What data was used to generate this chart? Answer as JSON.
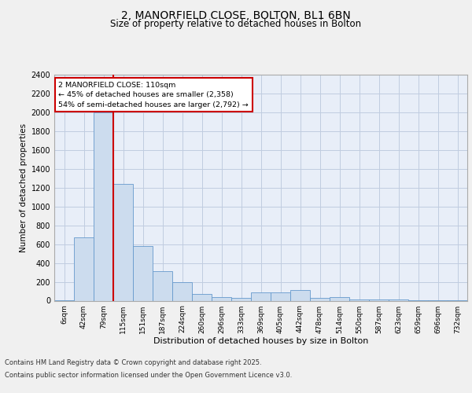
{
  "title_line1": "2, MANORFIELD CLOSE, BOLTON, BL1 6BN",
  "title_line2": "Size of property relative to detached houses in Bolton",
  "xlabel": "Distribution of detached houses by size in Bolton",
  "ylabel": "Number of detached properties",
  "categories": [
    "6sqm",
    "42sqm",
    "79sqm",
    "115sqm",
    "151sqm",
    "187sqm",
    "224sqm",
    "260sqm",
    "296sqm",
    "333sqm",
    "369sqm",
    "405sqm",
    "442sqm",
    "478sqm",
    "514sqm",
    "550sqm",
    "587sqm",
    "623sqm",
    "659sqm",
    "696sqm",
    "732sqm"
  ],
  "values": [
    5,
    670,
    2000,
    1240,
    580,
    310,
    200,
    75,
    40,
    30,
    85,
    85,
    115,
    30,
    35,
    15,
    10,
    10,
    5,
    5,
    5
  ],
  "bar_color": "#ccdcee",
  "bar_edge_color": "#6699cc",
  "vline_color": "#cc0000",
  "vline_x_index": 2.5,
  "annotation_text": "2 MANORFIELD CLOSE: 110sqm\n← 45% of detached houses are smaller (2,358)\n54% of semi-detached houses are larger (2,792) →",
  "annotation_box_color": "#ffffff",
  "annotation_box_edge": "#cc0000",
  "ylim": [
    0,
    2400
  ],
  "yticks": [
    0,
    200,
    400,
    600,
    800,
    1000,
    1200,
    1400,
    1600,
    1800,
    2000,
    2200,
    2400
  ],
  "grid_color": "#c0cce0",
  "background_color": "#e8eef8",
  "fig_background": "#f0f0f0",
  "footer_line1": "Contains HM Land Registry data © Crown copyright and database right 2025.",
  "footer_line2": "Contains public sector information licensed under the Open Government Licence v3.0."
}
